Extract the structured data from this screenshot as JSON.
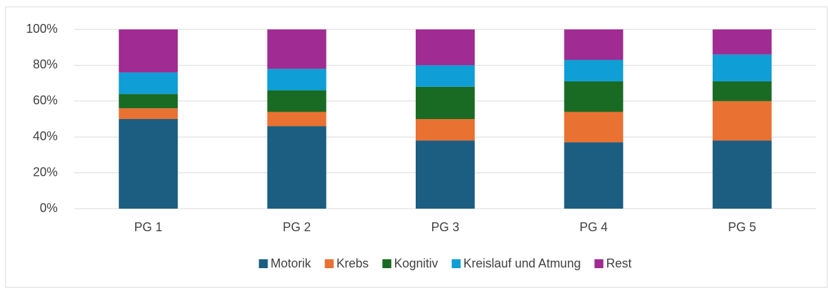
{
  "chart_data": {
    "type": "stacked_bar",
    "categories": [
      "PG 1",
      "PG 2",
      "PG 3",
      "PG 4",
      "PG 5"
    ],
    "series": [
      {
        "name": "Motorik",
        "color": "#1b5e82",
        "values": [
          50,
          46,
          38,
          37,
          38
        ]
      },
      {
        "name": "Krebs",
        "color": "#e97132",
        "values": [
          6,
          8,
          12,
          17,
          22
        ]
      },
      {
        "name": "Kognitiv",
        "color": "#196b24",
        "values": [
          8,
          12,
          18,
          17,
          11
        ]
      },
      {
        "name": "Kreislauf und Atmung",
        "color": "#0f9ed5",
        "values": [
          12,
          12,
          12,
          12,
          15
        ]
      },
      {
        "name": "Rest",
        "color": "#a02b93",
        "values": [
          24,
          22,
          20,
          17,
          14
        ]
      }
    ],
    "ylim": [
      0,
      100
    ],
    "yticks": [
      {
        "value": 0,
        "label": "0%"
      },
      {
        "value": 20,
        "label": "20%"
      },
      {
        "value": 40,
        "label": "40%"
      },
      {
        "value": 60,
        "label": "60%"
      },
      {
        "value": 80,
        "label": "80%"
      },
      {
        "value": 100,
        "label": "100%"
      }
    ],
    "grid": true,
    "legend": "bottom"
  }
}
